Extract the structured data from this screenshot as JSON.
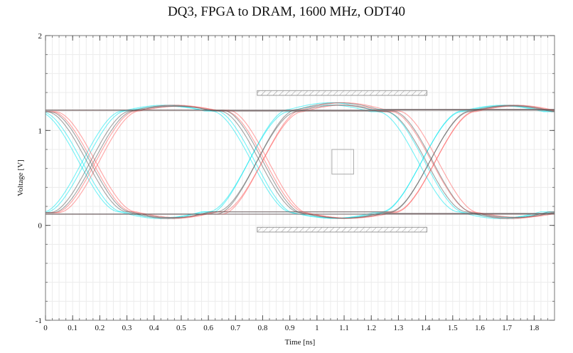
{
  "chart_data": {
    "type": "line",
    "title": "DQ3, FPGA to DRAM, 1600 MHz, ODT40",
    "xlabel": "Time [ns]",
    "ylabel": "Voltage [V]",
    "xlim": [
      0,
      1.875
    ],
    "ylim": [
      -1,
      2
    ],
    "x_ticks": [
      "0",
      "0.1",
      "0.2",
      "0.3",
      "0.4",
      "0.5",
      "0.6",
      "0.7",
      "0.8",
      "0.9",
      "1",
      "1.1",
      "1.2",
      "1.3",
      "1.4",
      "1.5",
      "1.6",
      "1.7",
      "1.8"
    ],
    "y_ticks": [
      "-1",
      "0",
      "1",
      "2"
    ],
    "grid": true,
    "eye": {
      "unit_interval_ns": 0.625,
      "crossing_times_ns": [
        0.155,
        0.78,
        1.405
      ],
      "crossing_voltage": 0.66,
      "high_level": 1.21,
      "low_level": 0.13,
      "overshoot_high": 1.28,
      "overshoot_low": 0.05
    },
    "mask": {
      "upper_bar": {
        "x": [
          0.78,
          1.405
        ],
        "y": [
          1.37,
          1.42
        ]
      },
      "lower_bar": {
        "x": [
          0.78,
          1.405
        ],
        "y": [
          -0.07,
          -0.02
        ]
      },
      "center_box": {
        "x": [
          1.055,
          1.135
        ],
        "y": [
          0.54,
          0.8
        ]
      }
    },
    "series": [
      {
        "color": "#00e5ee",
        "edge_offset_ns": -0.02
      },
      {
        "color": "#ff5a5a",
        "edge_offset_ns": 0.03
      },
      {
        "color": "#555555",
        "edge_offset_ns": 0.01
      }
    ]
  }
}
